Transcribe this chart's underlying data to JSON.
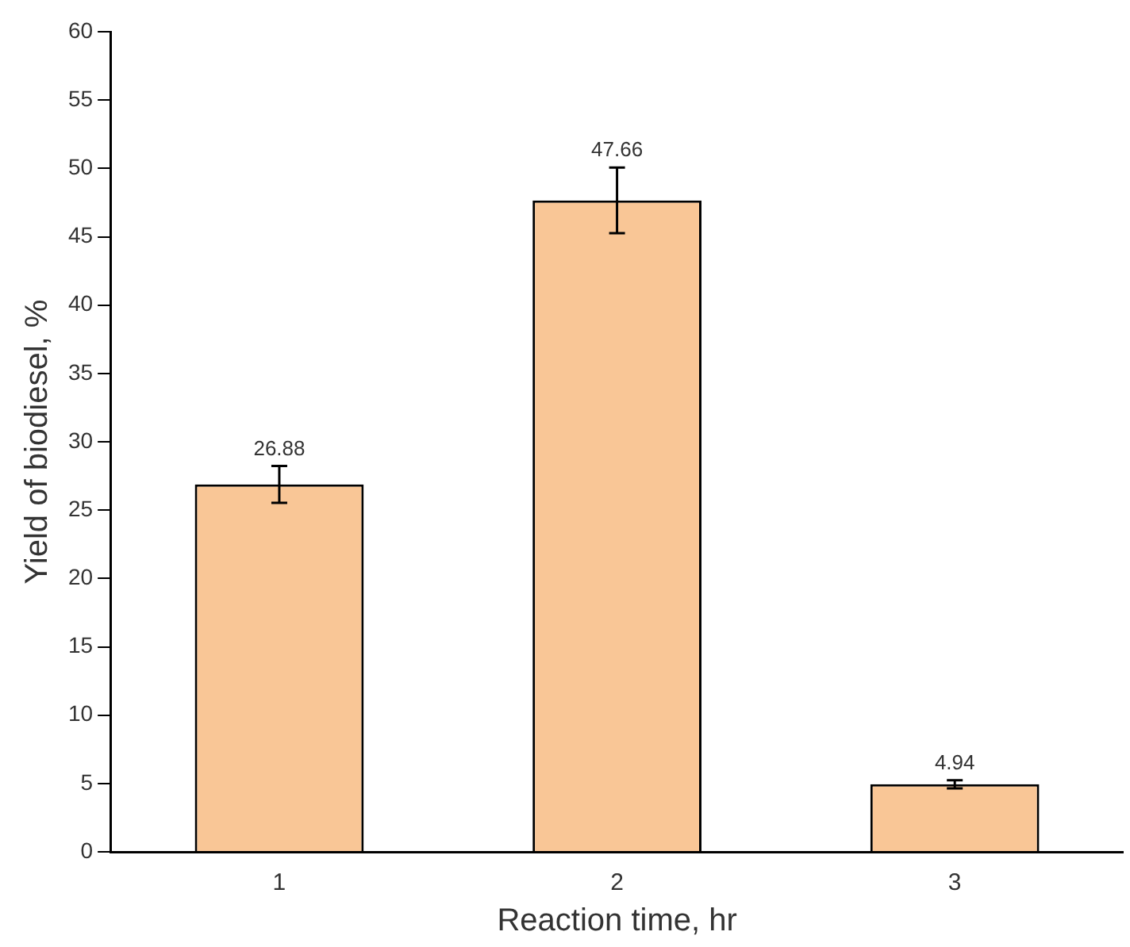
{
  "chart_data": {
    "type": "bar",
    "xlabel": "Reaction time, hr",
    "ylabel": "Yield of biodiesel, %",
    "categories": [
      "1",
      "2",
      "3"
    ],
    "values": [
      26.88,
      47.66,
      4.94
    ],
    "errors": [
      1.35,
      2.4,
      0.3
    ],
    "color": "#f9c696",
    "ylim": [
      0,
      60
    ],
    "yticks": [
      0,
      5,
      10,
      15,
      20,
      25,
      30,
      35,
      40,
      45,
      50,
      55,
      60
    ],
    "grid": false,
    "legend": false,
    "data_labels": true
  }
}
